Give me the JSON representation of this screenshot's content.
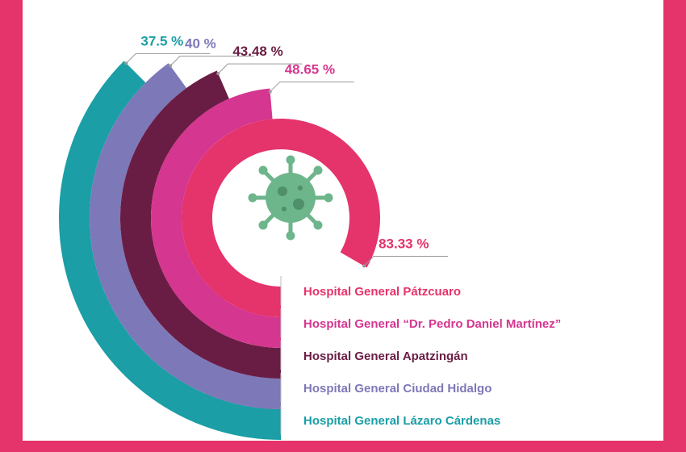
{
  "chart_data": {
    "type": "radial-bar",
    "categories": [
      "Hospital General Pátzcuaro",
      "Hospital General “Dr. Pedro Daniel Martínez”",
      "Hospital General Apatzingán",
      "Hospital General Ciudad Hidalgo",
      "Hospital General Lázaro Cárdenas"
    ],
    "values": [
      83.33,
      48.65,
      43.48,
      40,
      37.5
    ],
    "value_labels": [
      "83.33 %",
      "48.65 %",
      "43.48 %",
      "40 %",
      "37.5 %"
    ],
    "colors": [
      "#e5336b",
      "#d5368f",
      "#6a1d44",
      "#7d78b8",
      "#1b9ea6"
    ],
    "ylim": [
      0,
      100
    ]
  }
}
